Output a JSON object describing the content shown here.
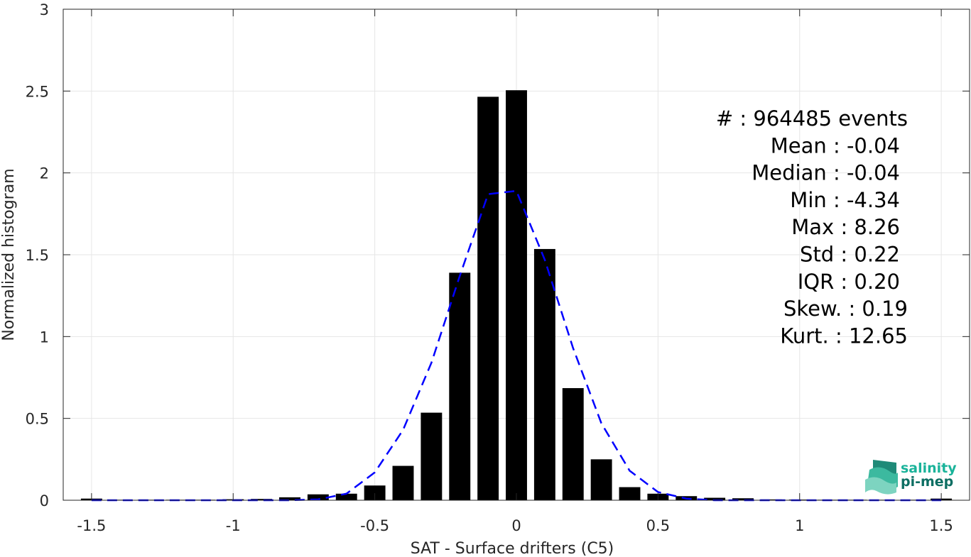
{
  "chart_data": {
    "type": "bar",
    "xlabel": "SAT - Surface drifters (C5)",
    "ylabel": "Normalized histogram",
    "xlim": [
      -1.6,
      1.6
    ],
    "ylim": [
      0,
      3
    ],
    "xticks": [
      -1.5,
      -1,
      -0.5,
      0,
      0.5,
      1,
      1.5
    ],
    "xtick_labels": [
      "-1.5",
      "-1",
      "-0.5",
      "0",
      "0.5",
      "1",
      "1.5"
    ],
    "yticks": [
      0,
      0.5,
      1,
      1.5,
      2,
      2.5,
      3
    ],
    "ytick_labels": [
      "0",
      "0.5",
      "1",
      "1.5",
      "2",
      "2.5",
      "3"
    ],
    "grid": true,
    "bar_width": 0.075,
    "bar_color": "#000000",
    "bars": {
      "x": [
        -1.5,
        -1.4,
        -1.3,
        -1.2,
        -1.1,
        -1.0,
        -0.9,
        -0.8,
        -0.7,
        -0.6,
        -0.5,
        -0.4,
        -0.3,
        -0.2,
        -0.1,
        0.0,
        0.1,
        0.2,
        0.3,
        0.4,
        0.5,
        0.6,
        0.7,
        0.8,
        0.9,
        1.0,
        1.1,
        1.2,
        1.3,
        1.4,
        1.5
      ],
      "values": [
        0.01,
        0.003,
        0.003,
        0.003,
        0.003,
        0.006,
        0.008,
        0.018,
        0.036,
        0.04,
        0.09,
        0.21,
        0.535,
        1.39,
        2.465,
        2.505,
        1.535,
        0.685,
        0.25,
        0.08,
        0.04,
        0.025,
        0.015,
        0.012,
        0.005,
        0.004,
        0.003,
        0.003,
        0.003,
        0.003,
        0.01
      ]
    },
    "fit_line": {
      "style": "dashed",
      "color": "#0000ff",
      "x": [
        -1.5,
        -1.4,
        -1.3,
        -1.2,
        -1.1,
        -1.0,
        -0.9,
        -0.8,
        -0.7,
        -0.6,
        -0.5,
        -0.4,
        -0.3,
        -0.2,
        -0.1,
        0.0,
        0.1,
        0.2,
        0.3,
        0.4,
        0.5,
        0.6,
        0.7,
        0.8,
        0.9,
        1.0,
        1.1,
        1.2,
        1.3,
        1.4,
        1.5
      ],
      "y": [
        0,
        0,
        0,
        0,
        0,
        0,
        0,
        0,
        0.005,
        0.04,
        0.17,
        0.43,
        0.84,
        1.37,
        1.87,
        1.89,
        1.47,
        0.93,
        0.47,
        0.18,
        0.05,
        0.01,
        0,
        0,
        0,
        0,
        0,
        0,
        0,
        0,
        0
      ]
    },
    "annotations": [
      "#  : 964485 events",
      "Mean : -0.04",
      "Median : -0.04",
      "Min : -4.34",
      "Max : 8.26",
      "Std : 0.22",
      "IQR : 0.20",
      "Skew. : 0.19",
      "Kurt. : 12.65"
    ]
  },
  "logo": {
    "line1": "salinity",
    "line2": "pi-mep",
    "color1": "#1ab39a",
    "color2": "#0d6e63"
  }
}
